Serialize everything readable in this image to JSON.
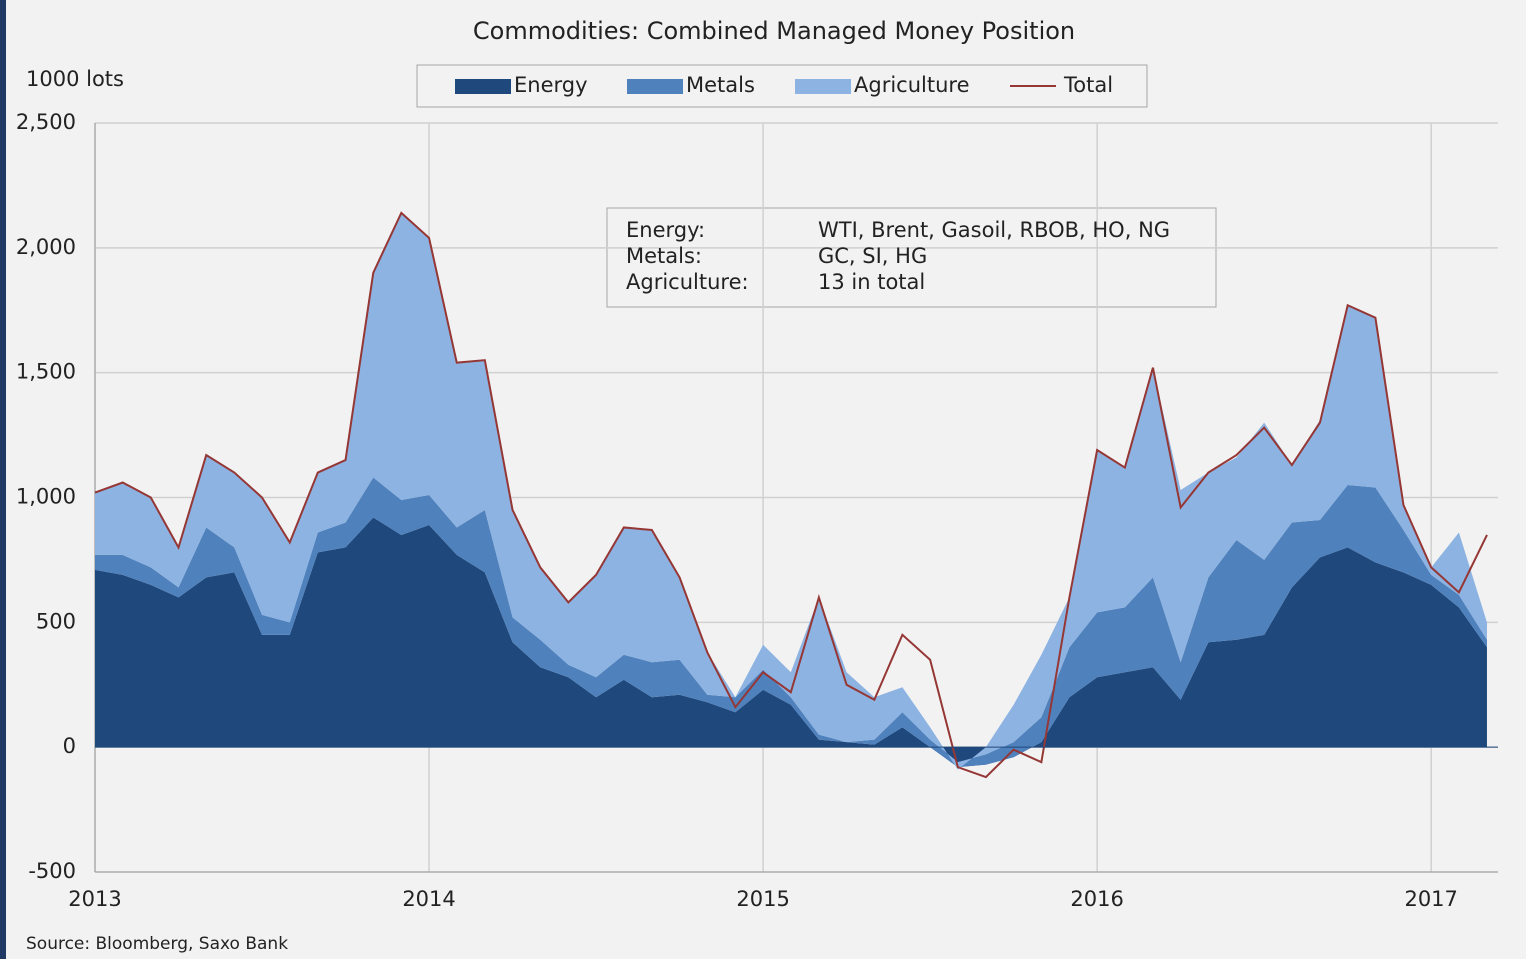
{
  "chart_data": {
    "type": "stacked_area",
    "title": "Commodities:  Combined  Managed  Money  Position",
    "y_label": "1000 lots",
    "source": "Source: Bloomberg, Saxo Bank",
    "annotation": [
      [
        "Energy:",
        "WTI, Brent, Gasoil, RBOB, HO, NG"
      ],
      [
        "Metals:",
        "GC, SI, HG"
      ],
      [
        "Agriculture:",
        "13 in total"
      ]
    ],
    "x": [
      2013,
      2013.083,
      2013.167,
      2013.25,
      2013.333,
      2013.417,
      2013.5,
      2013.583,
      2013.667,
      2013.75,
      2013.833,
      2013.917,
      2014,
      2014.083,
      2014.167,
      2014.25,
      2014.333,
      2014.417,
      2014.5,
      2014.583,
      2014.667,
      2014.75,
      2014.833,
      2014.917,
      2015,
      2015.083,
      2015.167,
      2015.25,
      2015.333,
      2015.417,
      2015.5,
      2015.583,
      2015.667,
      2015.75,
      2015.833,
      2015.917,
      2016,
      2016.083,
      2016.167,
      2016.25,
      2016.333,
      2016.417,
      2016.5,
      2016.583,
      2016.667,
      2016.75,
      2016.833,
      2016.917,
      2017,
      2017.083,
      2017.167
    ],
    "series": [
      {
        "name": "Energy",
        "color": "#1f497d",
        "values": [
          710,
          690,
          650,
          600,
          680,
          700,
          450,
          450,
          780,
          800,
          920,
          850,
          890,
          770,
          700,
          420,
          320,
          280,
          200,
          270,
          200,
          210,
          180,
          140,
          230,
          170,
          30,
          20,
          10,
          80,
          0,
          -80,
          -70,
          -40,
          20,
          200,
          280,
          300,
          320,
          190,
          420,
          430,
          450,
          640,
          760,
          800,
          740,
          700,
          650,
          560,
          400
        ]
      },
      {
        "name": "Metals",
        "color": "#4f81bd",
        "values": [
          60,
          80,
          70,
          40,
          200,
          100,
          80,
          50,
          80,
          100,
          160,
          140,
          120,
          110,
          250,
          100,
          110,
          50,
          80,
          100,
          140,
          140,
          30,
          60,
          80,
          30,
          20,
          0,
          20,
          60,
          30,
          20,
          40,
          60,
          100,
          200,
          260,
          260,
          360,
          150,
          260,
          400,
          300,
          260,
          150,
          250,
          300,
          170,
          40,
          50,
          30
        ]
      },
      {
        "name": "Agriculture",
        "color": "#8db3e2",
        "values": [
          250,
          290,
          280,
          160,
          290,
          300,
          470,
          320,
          240,
          250,
          820,
          1150,
          1030,
          660,
          600,
          430,
          290,
          250,
          410,
          510,
          530,
          330,
          170,
          0,
          100,
          100,
          550,
          280,
          170,
          100,
          50,
          -30,
          30,
          150,
          250,
          200,
          650,
          560,
          840,
          690,
          420,
          330,
          550,
          230,
          400,
          720,
          680,
          100,
          30,
          250,
          70
        ]
      },
      {
        "name": "Total",
        "color": "#953735",
        "line": true,
        "values": [
          1020,
          1060,
          1000,
          800,
          1170,
          1100,
          1000,
          820,
          1100,
          1150,
          1900,
          2140,
          2040,
          1540,
          1550,
          950,
          720,
          580,
          690,
          880,
          870,
          680,
          380,
          160,
          300,
          220,
          600,
          250,
          190,
          450,
          350,
          -80,
          -120,
          -10,
          -60,
          600,
          1190,
          1120,
          1520,
          960,
          1100,
          1170,
          1280,
          1130,
          1300,
          1770,
          1720,
          970,
          720,
          620,
          850
        ]
      }
    ],
    "xlim": [
      2013,
      2017.2
    ],
    "xticks": [
      2013,
      2014,
      2015,
      2016,
      2017
    ],
    "ylim": [
      -500,
      2500
    ],
    "yticks": [
      -500,
      0,
      500,
      {
        "value": 1000,
        "label": "1,000"
      },
      {
        "value": 1500,
        "label": "1,500"
      },
      {
        "value": 2000,
        "label": "2,000"
      },
      {
        "value": 2500,
        "label": "2,500"
      }
    ],
    "grid": true
  }
}
